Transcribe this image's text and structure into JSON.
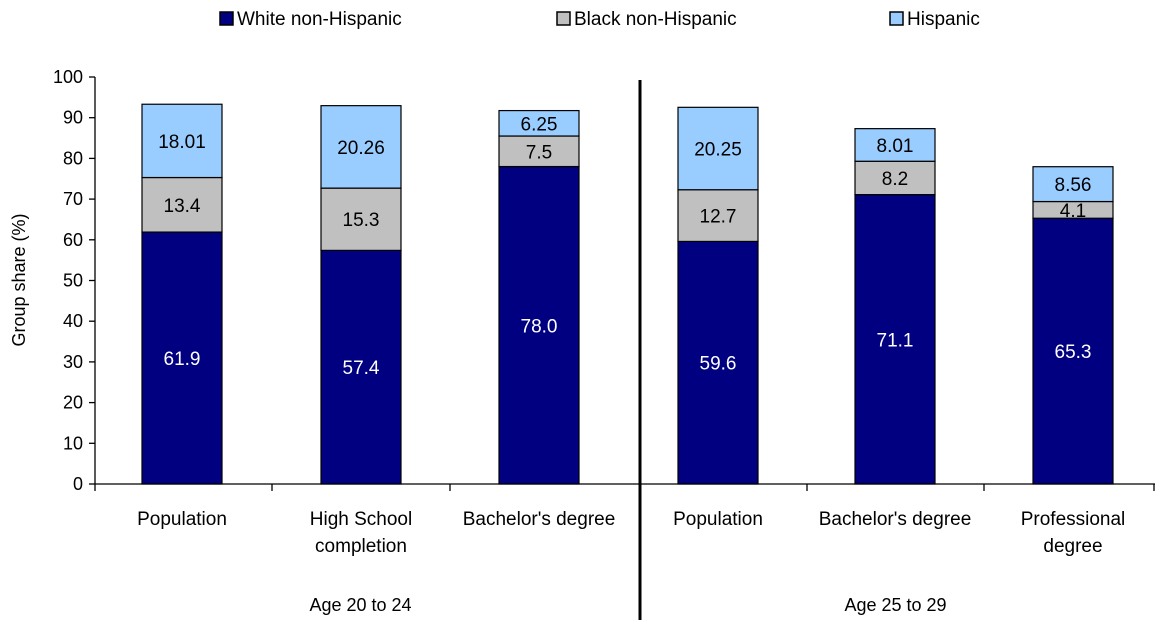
{
  "chart_data": {
    "type": "bar",
    "stacked": true,
    "ylabel": "Group share  (%)",
    "ylim": [
      0,
      100
    ],
    "yticks": [
      0,
      10,
      20,
      30,
      40,
      50,
      60,
      70,
      80,
      90,
      100
    ],
    "grid": false,
    "legend_position": "top",
    "categories": [
      "Population",
      "High School completion",
      "Bachelor's degree",
      "Population",
      "Bachelor's degree",
      "Professional degree"
    ],
    "category_label_lines": [
      [
        "Population"
      ],
      [
        "High School",
        "completion"
      ],
      [
        "Bachelor's degree"
      ],
      [
        "Population"
      ],
      [
        "Bachelor's degree"
      ],
      [
        "Professional",
        "degree"
      ]
    ],
    "groups": [
      {
        "label": "Age 20 to 24",
        "categories": [
          0,
          1,
          2
        ]
      },
      {
        "label": "Age 25 to 29",
        "categories": [
          3,
          4,
          5
        ]
      }
    ],
    "series": [
      {
        "name": "White non-Hispanic",
        "color": "#000080",
        "label_color": "#ffffff",
        "values": [
          61.9,
          57.4,
          78.0,
          59.6,
          71.1,
          65.3
        ],
        "labels": [
          "61.9",
          "57.4",
          "78.0",
          "59.6",
          "71.1",
          "65.3"
        ]
      },
      {
        "name": "Black non-Hispanic",
        "color": "#c0c0c0",
        "label_color": "#000000",
        "values": [
          13.4,
          15.3,
          7.5,
          12.7,
          8.2,
          4.1
        ],
        "labels": [
          "13.4",
          "15.3",
          "7.5",
          "12.7",
          "8.2",
          "4.1"
        ]
      },
      {
        "name": "Hispanic",
        "color": "#99ccff",
        "label_color": "#000000",
        "values": [
          18.01,
          20.26,
          6.25,
          20.25,
          8.01,
          8.56
        ],
        "labels": [
          "18.01",
          "20.26",
          "6.25",
          "20.25",
          "8.01",
          "8.56"
        ]
      }
    ]
  }
}
